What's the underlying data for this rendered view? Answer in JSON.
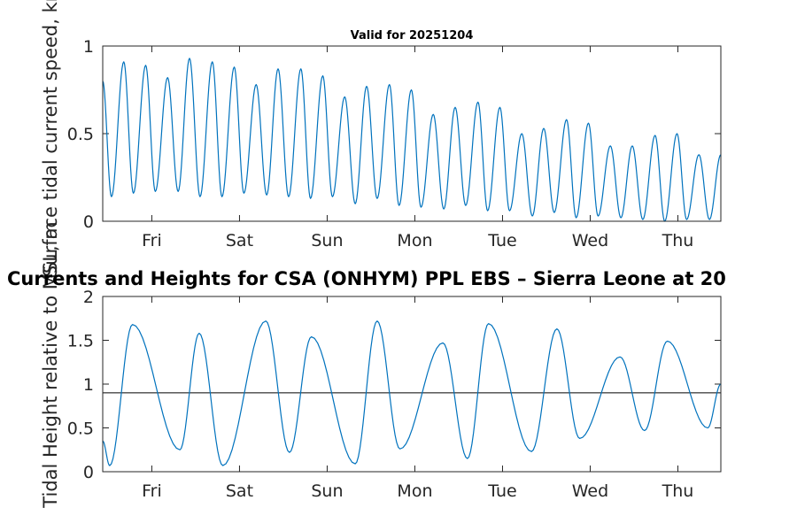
{
  "figure_title": "Currents and Heights for CSA (ONHYM) PPL EBS  – Sierra Leone at 20",
  "colors": {
    "series": "#0072BD",
    "reference_line": "#000000",
    "axes": "#262626"
  },
  "chart_data": [
    {
      "type": "line",
      "title": "Valid for 20251204",
      "ylabel": "Surface tidal current speed, kn",
      "xlabel": "",
      "x_range_days": [
        0,
        7.05
      ],
      "x_tick_positions_days": [
        0.56,
        1.56,
        2.56,
        3.56,
        4.56,
        5.56,
        6.56
      ],
      "x_tick_labels": [
        "Fri",
        "Sat",
        "Sun",
        "Mon",
        "Tue",
        "Wed",
        "Thu"
      ],
      "ylim": [
        0,
        1
      ],
      "y_ticks": [
        0,
        0.5,
        1
      ],
      "y_tick_labels": [
        "0",
        "0.5",
        "1"
      ],
      "series": [
        {
          "name": "current speed",
          "x_days": [
            0.0,
            0.1,
            0.24,
            0.35,
            0.49,
            0.6,
            0.74,
            0.86,
            0.99,
            1.11,
            1.25,
            1.36,
            1.5,
            1.61,
            1.75,
            1.87,
            2.0,
            2.12,
            2.26,
            2.37,
            2.51,
            2.62,
            2.76,
            2.88,
            3.01,
            3.13,
            3.27,
            3.38,
            3.52,
            3.63,
            3.77,
            3.89,
            4.02,
            4.14,
            4.28,
            4.39,
            4.53,
            4.64,
            4.78,
            4.9,
            5.03,
            5.15,
            5.29,
            5.4,
            5.54,
            5.65,
            5.79,
            5.91,
            6.04,
            6.16,
            6.3,
            6.41,
            6.55,
            6.66,
            6.8,
            6.92,
            7.05
          ],
          "values": [
            0.8,
            0.14,
            0.91,
            0.16,
            0.89,
            0.17,
            0.82,
            0.17,
            0.93,
            0.14,
            0.91,
            0.14,
            0.88,
            0.16,
            0.78,
            0.15,
            0.87,
            0.14,
            0.87,
            0.13,
            0.83,
            0.14,
            0.71,
            0.1,
            0.77,
            0.13,
            0.78,
            0.09,
            0.75,
            0.08,
            0.61,
            0.07,
            0.65,
            0.09,
            0.68,
            0.06,
            0.65,
            0.06,
            0.5,
            0.03,
            0.53,
            0.05,
            0.58,
            0.02,
            0.56,
            0.03,
            0.43,
            0.02,
            0.43,
            0.01,
            0.49,
            0.0,
            0.5,
            0.01,
            0.38,
            0.01,
            0.38
          ]
        }
      ]
    },
    {
      "type": "line",
      "title": "",
      "ylabel": "Tidal Height relative to MSL, m",
      "xlabel": "",
      "x_range_days": [
        0,
        7.05
      ],
      "x_tick_positions_days": [
        0.56,
        1.56,
        2.56,
        3.56,
        4.56,
        5.56,
        6.56
      ],
      "x_tick_labels": [
        "Fri",
        "Sat",
        "Sun",
        "Mon",
        "Tue",
        "Wed",
        "Thu"
      ],
      "ylim": [
        0,
        2
      ],
      "y_ticks": [
        0,
        0.5,
        1,
        1.5,
        2
      ],
      "y_tick_labels": [
        "0",
        "0.5",
        "1",
        "1.5",
        "2"
      ],
      "reference_line": 0.9,
      "series": [
        {
          "name": "tidal height",
          "x_days": [
            0.0,
            0.08,
            0.34,
            0.88,
            1.1,
            1.37,
            1.86,
            2.13,
            2.38,
            2.88,
            3.13,
            3.39,
            3.88,
            4.16,
            4.4,
            4.89,
            5.18,
            5.44,
            5.9,
            6.18,
            6.44,
            6.9,
            7.05
          ],
          "values": [
            0.35,
            0.07,
            1.68,
            0.25,
            1.58,
            0.07,
            1.72,
            0.22,
            1.54,
            0.09,
            1.72,
            0.26,
            1.47,
            0.15,
            1.69,
            0.23,
            1.63,
            0.38,
            1.31,
            0.47,
            1.49,
            0.5,
            1.0
          ]
        }
      ]
    }
  ]
}
